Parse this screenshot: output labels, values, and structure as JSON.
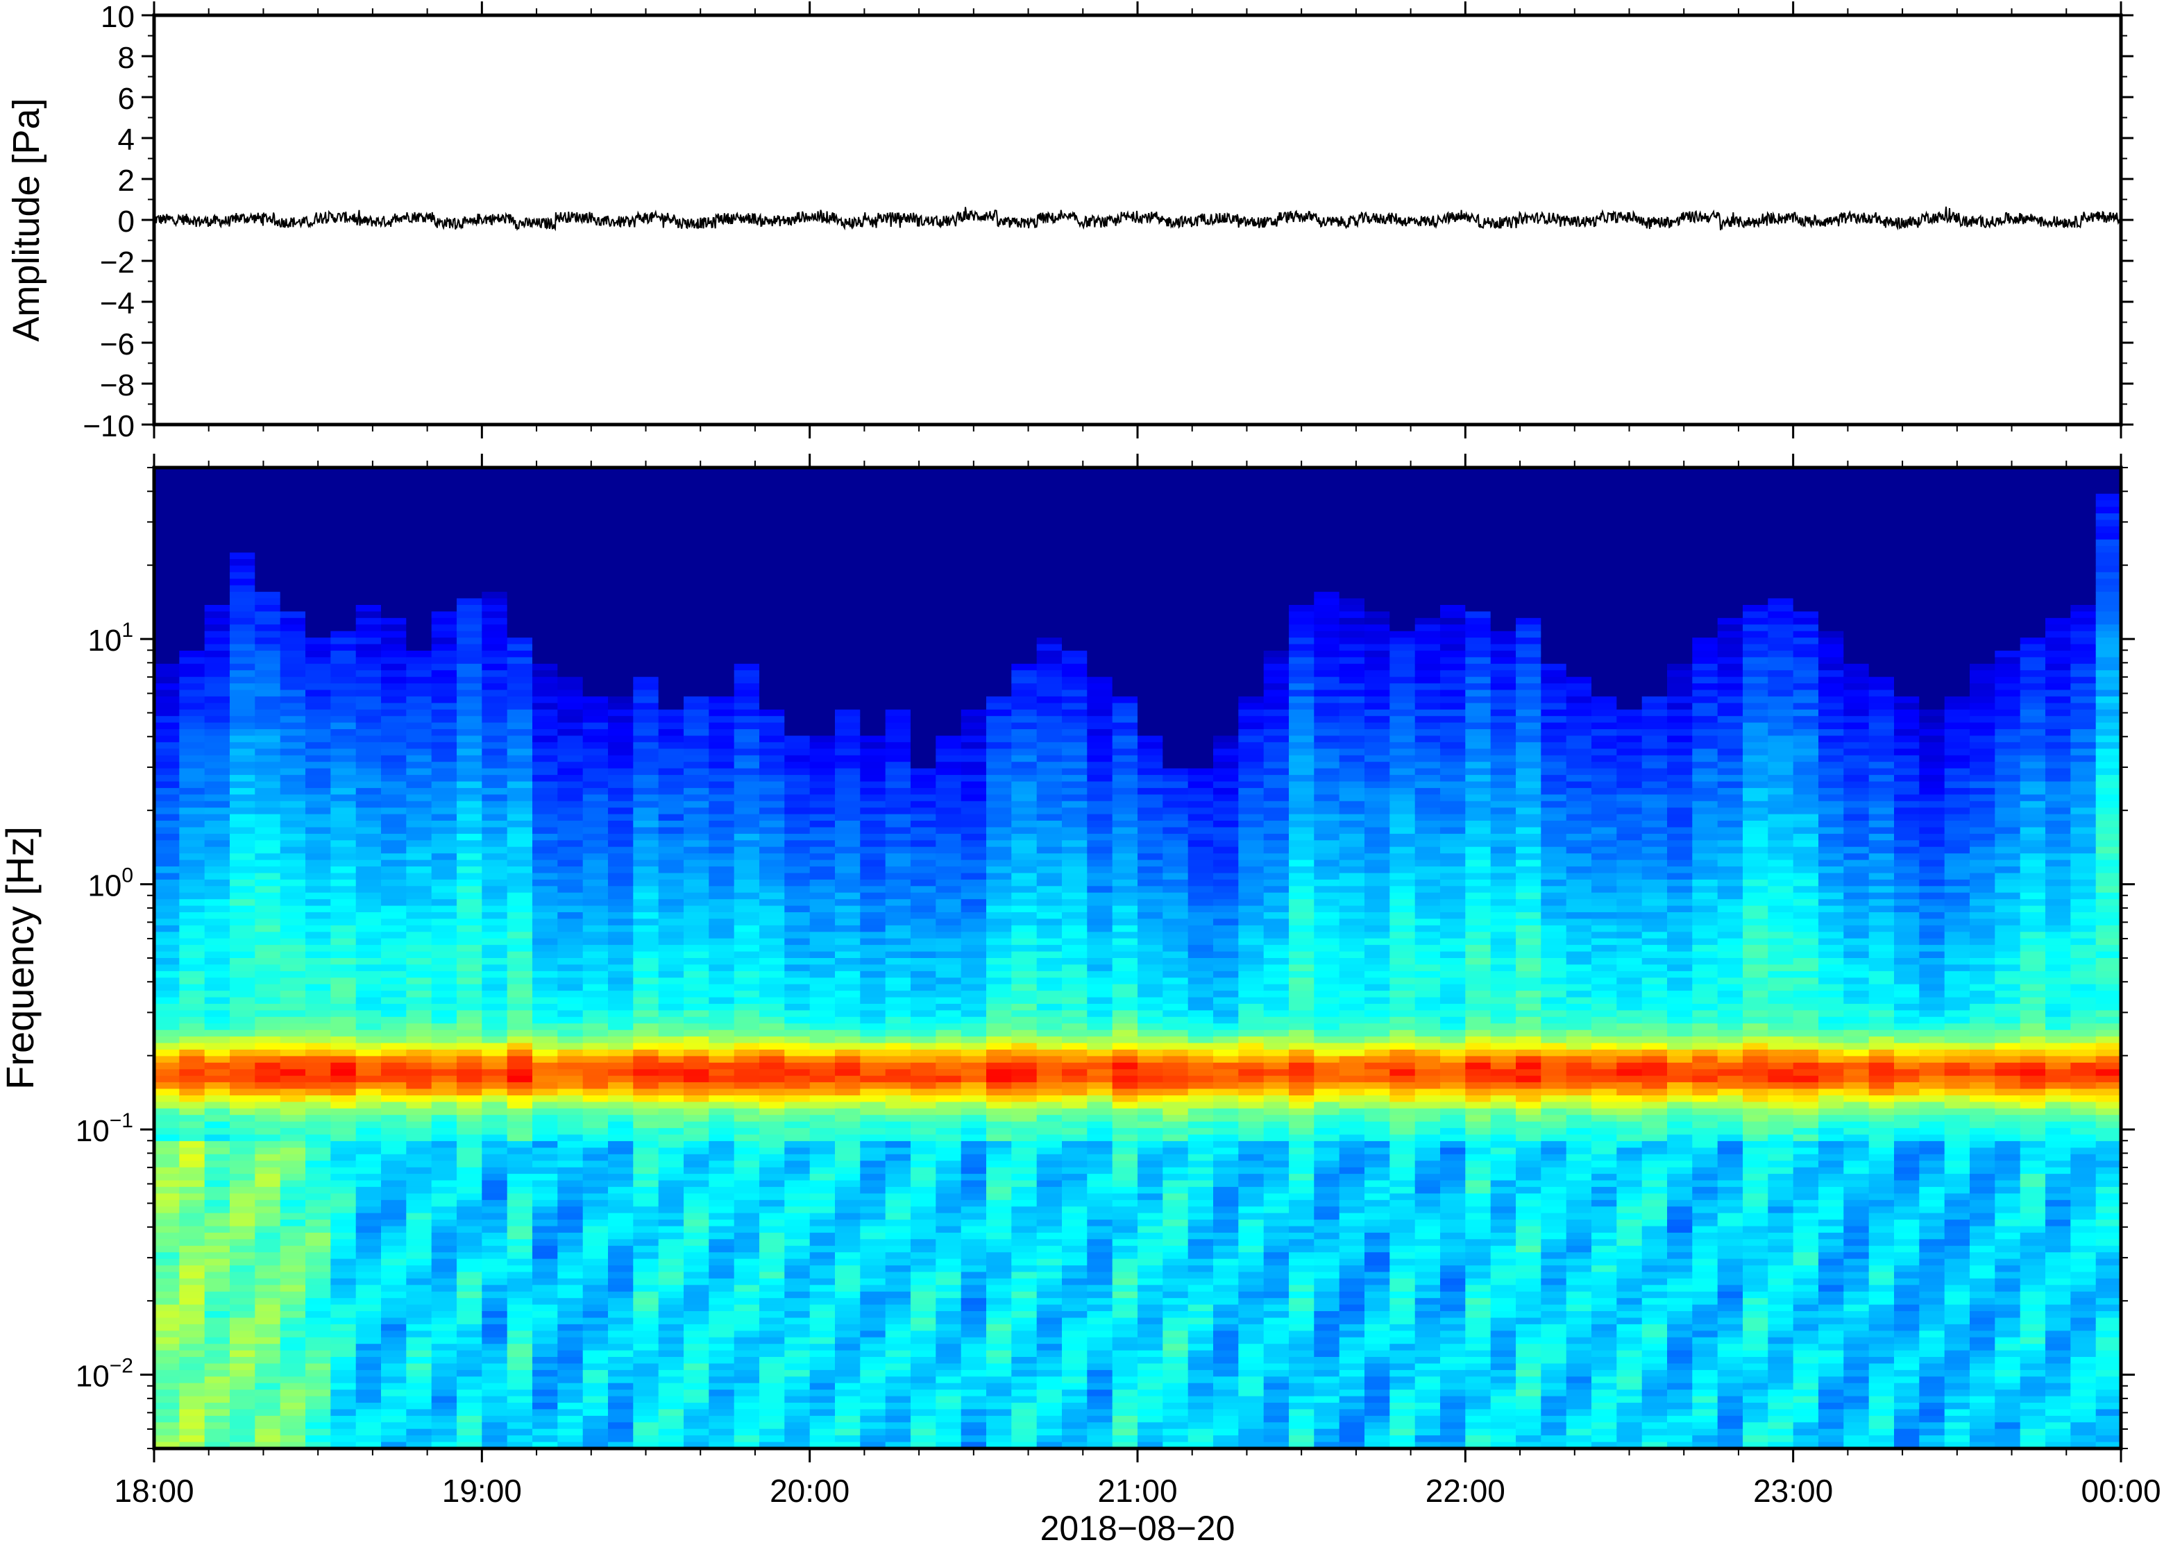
{
  "chart_data": [
    {
      "type": "line",
      "panel": "waveform",
      "ylabel": "Amplitude [Pa]",
      "ylim": [
        -10,
        10
      ],
      "yticks": [
        -10,
        -8,
        -6,
        -4,
        -2,
        0,
        2,
        4,
        6,
        8,
        10
      ],
      "ytick_labels": [
        "−10",
        "−8",
        "−6",
        "−4",
        "−2",
        "0",
        "2",
        "4",
        "6",
        "8",
        "10"
      ],
      "series": [
        {
          "color": "#000000",
          "x_start": "2018-08-20T18:00",
          "x_end": "2018-08-21T00:00",
          "values": [
            0.05,
            -0.12,
            0.18,
            -0.22,
            0.25,
            -0.15,
            0.32,
            -0.28,
            0.1,
            -0.35,
            0.28,
            -0.18,
            0.22,
            -0.3,
            0.15,
            -0.08,
            0.3,
            -0.25,
            0.2,
            -0.12,
            0.4,
            -0.3,
            0.18,
            -0.2,
            0.26,
            -0.16,
            0.12,
            -0.24,
            0.3,
            -0.2,
            0.15,
            -0.1,
            0.22,
            -0.28,
            0.18,
            -0.14,
            0.25,
            -0.2,
            0.3,
            -0.22,
            0.16,
            -0.12,
            0.2,
            -0.26,
            0.24,
            -0.18,
            0.14,
            -0.2,
            0.28,
            -0.16
          ]
        }
      ]
    },
    {
      "type": "heatmap",
      "panel": "spectrogram",
      "ylabel": "Frequency [Hz]",
      "yscale": "log",
      "ylim": [
        0.005,
        50
      ],
      "ytick_labels": [
        {
          "base": "10",
          "exp": "−2"
        },
        {
          "base": "10",
          "exp": "−1"
        },
        {
          "base": "10",
          "exp": "0"
        },
        {
          "base": "10",
          "exp": "1"
        }
      ],
      "colormap": "jet",
      "microbarom_peak_hz": 0.17,
      "upper_edge_hz_per_column": [
        8,
        9,
        14,
        22,
        16,
        13,
        10,
        11,
        14,
        12,
        9,
        13,
        15,
        16,
        10,
        8,
        7,
        6,
        6,
        7,
        5,
        6,
        6,
        8,
        5,
        4,
        4,
        5,
        4,
        5,
        3,
        4,
        5,
        6,
        8,
        10,
        9,
        7,
        6,
        4,
        3,
        3,
        4,
        6,
        9,
        14,
        16,
        15,
        13,
        11,
        12,
        14,
        13,
        11,
        12,
        8,
        7,
        6,
        5,
        6,
        8,
        10,
        12,
        14,
        15,
        13,
        11,
        8,
        7,
        6,
        5,
        6,
        8,
        9,
        10,
        12,
        14,
        40
      ]
    }
  ],
  "x_axis": {
    "label": "2018−08−20",
    "start": "2018-08-20T18:00",
    "end": "2018-08-21T00:00",
    "tick_labels": [
      "18:00",
      "19:00",
      "20:00",
      "21:00",
      "22:00",
      "23:00",
      "00:00"
    ]
  }
}
